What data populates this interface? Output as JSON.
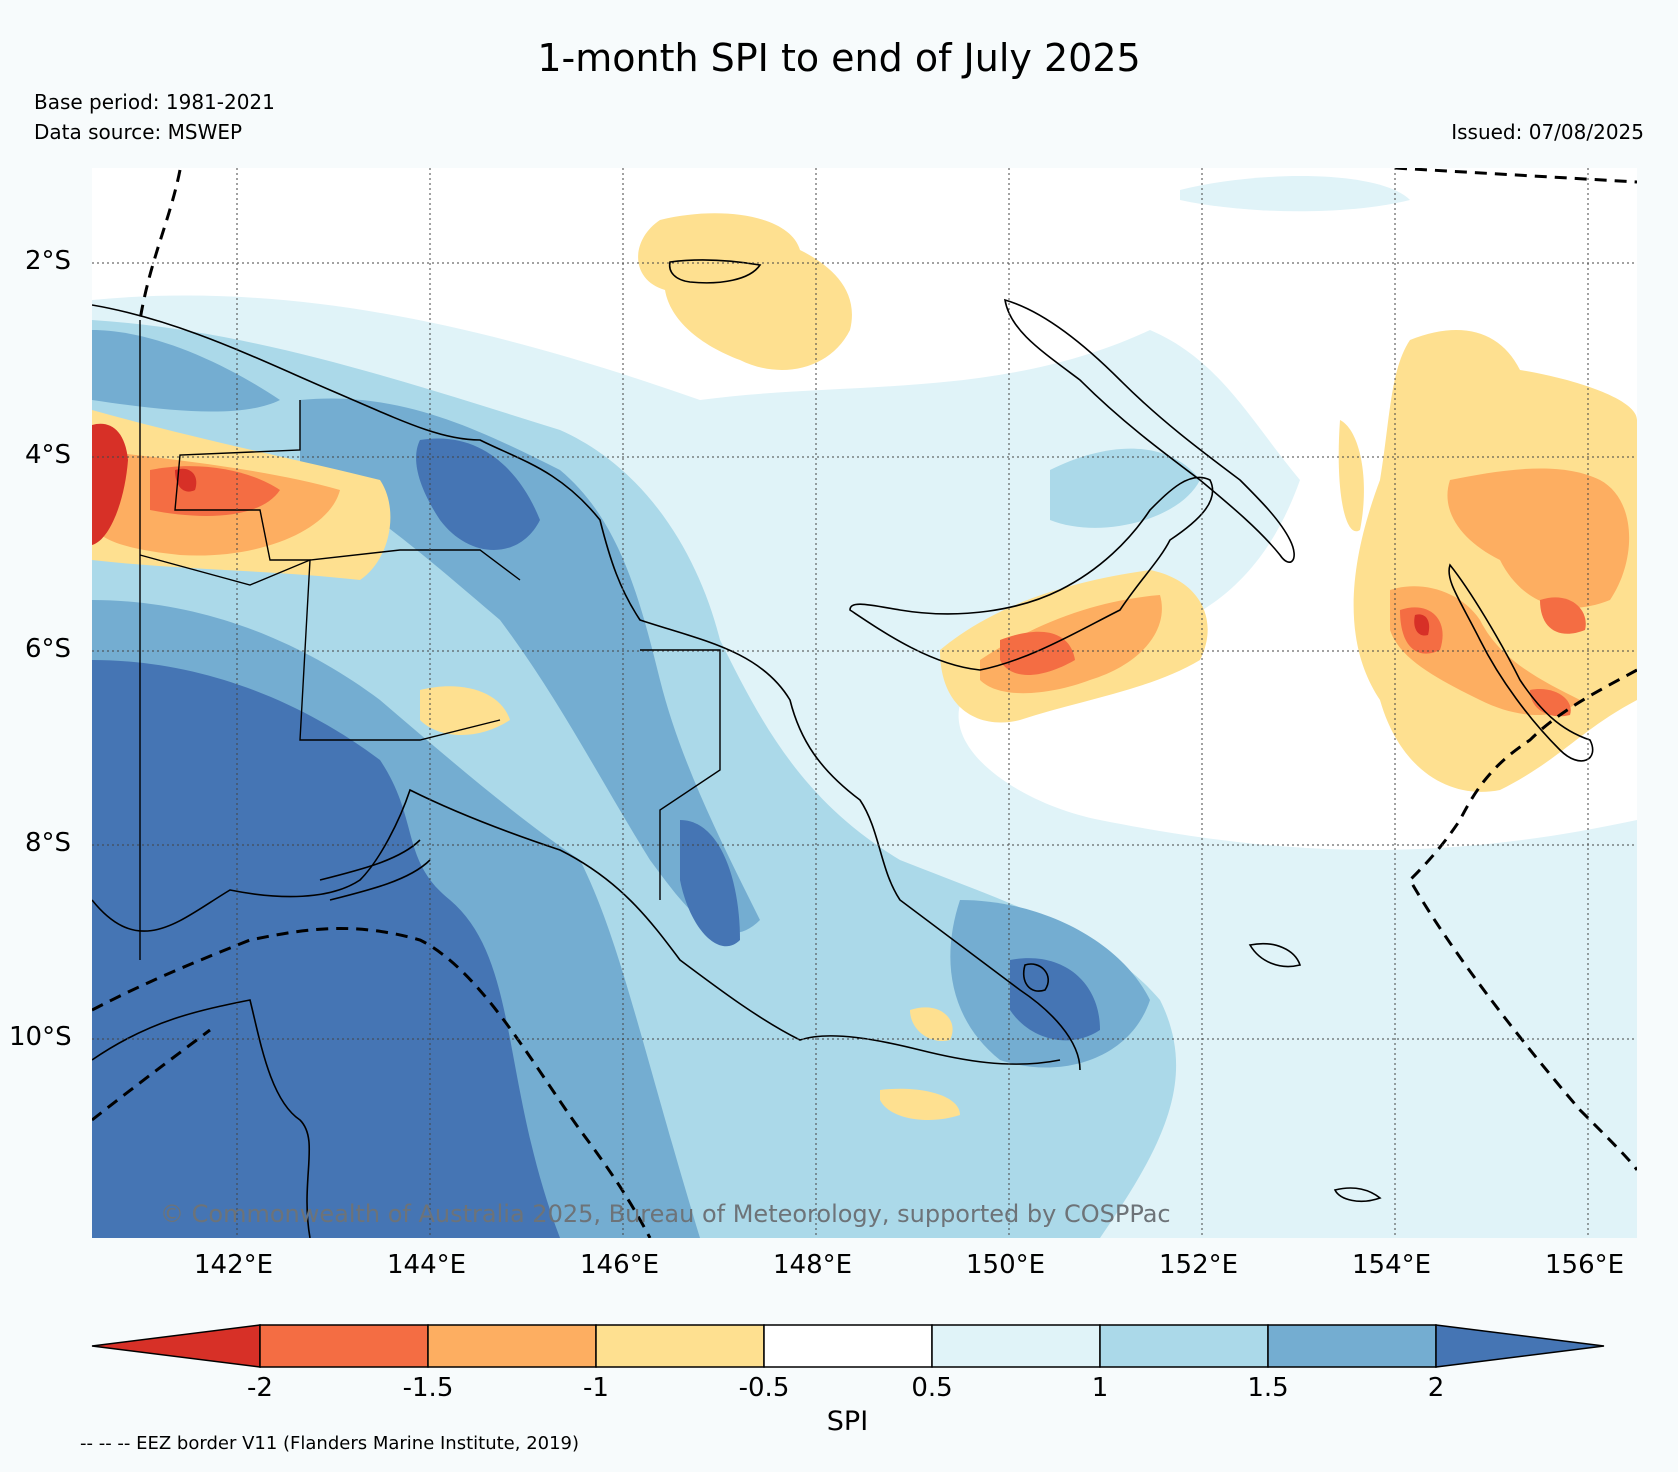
{
  "title": "1-month SPI to end of July 2025",
  "base_period": "Base period: 1981-2021",
  "data_source": "Data source: MSWEP",
  "issued": "Issued: 07/08/2025",
  "copyright": "© Commonwealth of Australia 2025, Bureau of Meteorology, supported by COSPPac",
  "eez_note": "-- -- -- EEZ border V11 (Flanders Marine Institute, 2019)",
  "map": {
    "lon_range": [
      140.5,
      156.5
    ],
    "lat_range": [
      -12,
      -1
    ],
    "lon_ticks": [
      "142°E",
      "144°E",
      "146°E",
      "148°E",
      "150°E",
      "152°E",
      "154°E",
      "156°E"
    ],
    "lat_ticks": [
      "2°S",
      "4°S",
      "6°S",
      "8°S",
      "10°S"
    ]
  },
  "colorbar": {
    "title": "SPI",
    "labels": [
      "-2",
      "-1.5",
      "-1",
      "-0.5",
      "0.5",
      "1",
      "1.5",
      "2"
    ],
    "colors": {
      "below_-2": "#d73027",
      "-2_to_-1.5": "#f46d43",
      "-1.5_to_-1": "#fdae61",
      "-1_to_-0.5": "#fee090",
      "-0.5_to_0.5": "#ffffff",
      "0.5_to_1": "#e0f3f8",
      "1_to_1.5": "#abd9e9",
      "1.5_to_2": "#74add1",
      "above_2": "#4575b4"
    }
  }
}
